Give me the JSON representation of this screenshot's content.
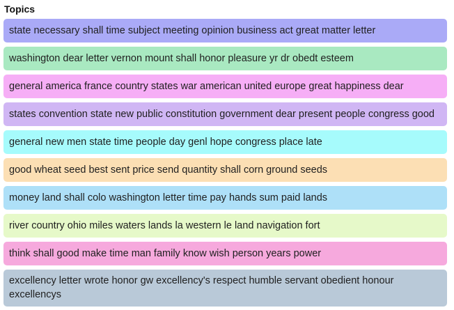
{
  "panel": {
    "title": "Topics"
  },
  "topics": [
    {
      "label": "state necessary shall time subject meeting opinion business act great matter letter",
      "color": "#aaaaf7"
    },
    {
      "label": "washington dear letter vernon mount shall honor pleasure yr dr obedt esteem",
      "color": "#a9e9c1"
    },
    {
      "label": "general america france country states war american united europe great happiness dear",
      "color": "#f6aef6"
    },
    {
      "label": "states convention state new public constitution government dear present people congress good",
      "color": "#d0b6f4"
    },
    {
      "label": "general new men state time people day genl hope congress place late",
      "color": "#a6fbfc"
    },
    {
      "label": "good wheat seed best sent price send quantity shall corn ground seeds",
      "color": "#fcdfb4"
    },
    {
      "label": "money land shall colo washington letter time pay hands sum paid lands",
      "color": "#aee0f8"
    },
    {
      "label": "river country ohio miles waters lands la western le land navigation fort",
      "color": "#e6f9c9"
    },
    {
      "label": "think shall good make time man family know wish person years power",
      "color": "#f6a9dd"
    },
    {
      "label": "excellency letter wrote honor gw excellency's respect humble servant obedient honour excellencys",
      "color": "#b9c9d8"
    }
  ]
}
